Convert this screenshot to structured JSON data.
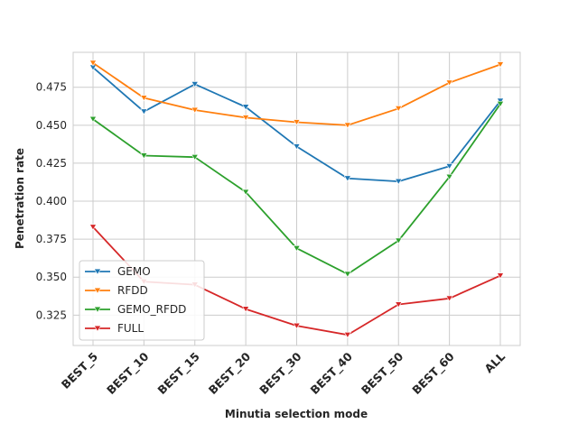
{
  "chart_data": {
    "type": "line",
    "xlabel": "Minutia selection mode",
    "ylabel": "Penetration rate",
    "categories": [
      "BEST_5",
      "BEST_10",
      "BEST_15",
      "BEST_20",
      "BEST_30",
      "BEST_40",
      "BEST_50",
      "BEST_60",
      "ALL"
    ],
    "ylim": [
      0.305,
      0.498
    ],
    "yticks": [
      0.325,
      0.35,
      0.375,
      0.4,
      0.425,
      0.45,
      0.475
    ],
    "ytick_labels": [
      "0.325",
      "0.350",
      "0.375",
      "0.400",
      "0.425",
      "0.450",
      "0.475"
    ],
    "grid": true,
    "legend_position": "lower-left",
    "marker": "triangle-down",
    "series": [
      {
        "name": "GEMO",
        "color": "#1f77b4",
        "values": [
          0.488,
          0.459,
          0.477,
          0.462,
          0.436,
          0.415,
          0.413,
          0.423,
          0.466
        ]
      },
      {
        "name": "RFDD",
        "color": "#ff7f0e",
        "values": [
          0.491,
          0.468,
          0.46,
          0.455,
          0.452,
          0.45,
          0.461,
          0.478,
          0.49
        ]
      },
      {
        "name": "GEMO_RFDD",
        "color": "#2ca02c",
        "values": [
          0.454,
          0.43,
          0.429,
          0.406,
          0.369,
          0.352,
          0.374,
          0.416,
          0.464
        ]
      },
      {
        "name": "FULL",
        "color": "#d62728",
        "values": [
          0.383,
          0.347,
          0.345,
          0.329,
          0.318,
          0.312,
          0.332,
          0.336,
          0.351
        ]
      }
    ]
  }
}
